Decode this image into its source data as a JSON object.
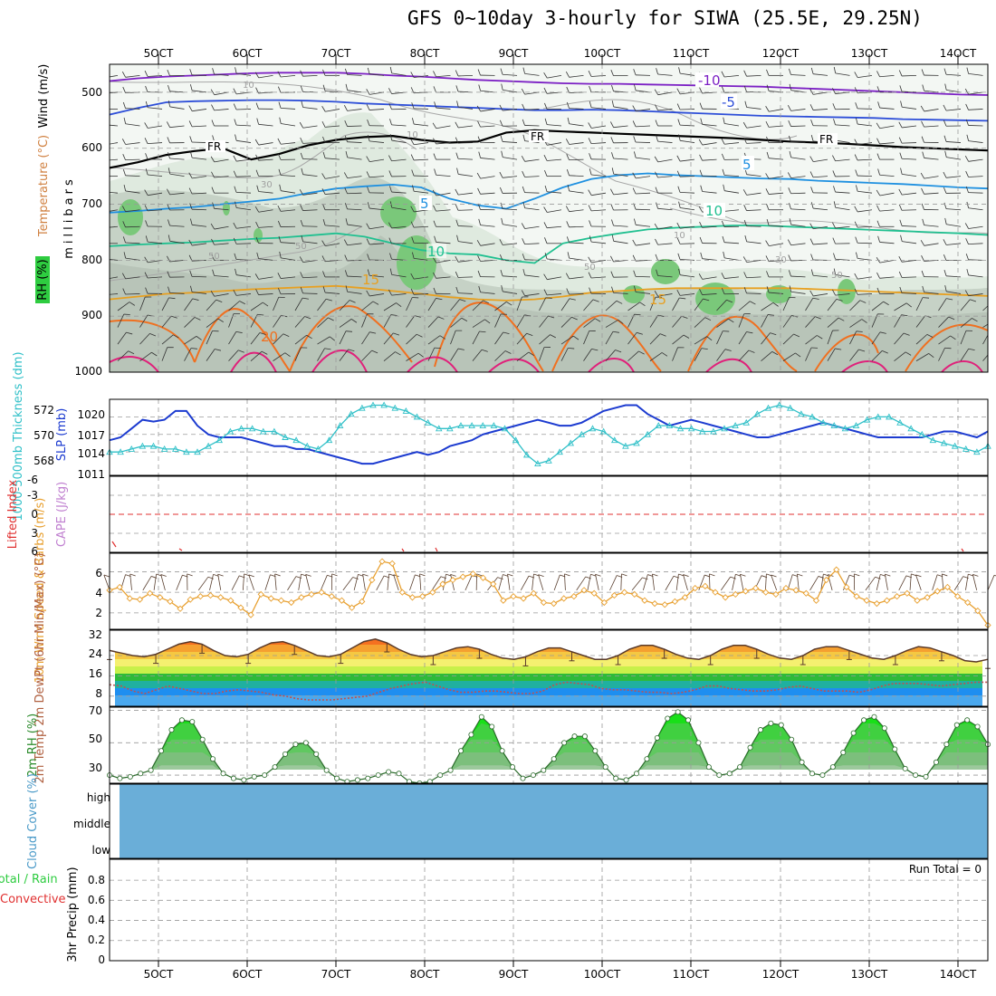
{
  "title": "GFS 0~10day 3-hourly for SIWA (25.5E, 29.25N)",
  "colors": {
    "temp_neg10": "#7b1fc4",
    "temp_neg5": "#2d4ed8",
    "temp_fr": "#000000",
    "temp_5": "#1e90e0",
    "temp_10": "#20c090",
    "temp_15": "#e8a020",
    "temp_20": "#f07020",
    "temp_25": "#e0207a",
    "slp": "#1c3bd0",
    "thickness": "#30c0c8",
    "wind_speed": "#e8a030",
    "barb": "#5a4030",
    "rh_line": "#2a8a2a",
    "rh_fill": "#3ec43e",
    "cloud": "#6aaed8",
    "zero_line": "#e03030"
  },
  "chart_data": [
    {
      "id": "upper_air",
      "type": "heatmap",
      "ylabel": "millibars",
      "side_labels": [
        "Wind (m/s)",
        "Temperature (°C)",
        "RH (%)"
      ],
      "y_ticks": [
        500,
        600,
        700,
        800,
        900,
        1000
      ],
      "ylim": [
        1000,
        450
      ],
      "x_ticks": [
        "5OCT",
        "6OCT",
        "7OCT",
        "8OCT",
        "9OCT",
        "10OCT",
        "11OCT",
        "12OCT",
        "13OCT",
        "14OCT"
      ],
      "contour_labels": [
        "-10",
        "-5",
        "FR",
        "FR",
        "FR",
        "5",
        "5",
        "10",
        "10",
        "15",
        "15",
        "20",
        "10",
        "30",
        "50",
        "50",
        "10",
        "50",
        "30",
        "10",
        "50"
      ],
      "isotherms_mb": [
        {
          "name": "-10",
          "color_key": "temp_neg10",
          "values": [
            480,
            475,
            472,
            470,
            468,
            466,
            465,
            465,
            465,
            467,
            470,
            472,
            475,
            478,
            480,
            482,
            484,
            485,
            485,
            486,
            487,
            488,
            489,
            490,
            492,
            494,
            496,
            498,
            500,
            502,
            504,
            505
          ]
        },
        {
          "name": "-5",
          "color_key": "temp_neg5",
          "values": [
            540,
            528,
            518,
            516,
            515,
            514,
            514,
            515,
            517,
            520,
            522,
            524,
            526,
            528,
            530,
            532,
            532,
            531,
            532,
            534,
            536,
            538,
            540,
            542,
            543,
            544,
            545,
            546,
            548,
            549,
            550,
            551
          ]
        },
        {
          "name": "FR",
          "color_key": "temp_fr",
          "values": [
            635,
            625,
            612,
            605,
            600,
            620,
            610,
            595,
            585,
            580,
            578,
            585,
            590,
            588,
            572,
            568,
            570,
            572,
            574,
            576,
            578,
            580,
            582,
            585,
            588,
            590,
            592,
            595,
            598,
            600,
            602,
            604
          ]
        },
        {
          "name": "5",
          "color_key": "temp_5",
          "values": [
            715,
            712,
            708,
            705,
            700,
            695,
            690,
            680,
            672,
            668,
            665,
            670,
            690,
            702,
            708,
            690,
            670,
            655,
            648,
            645,
            648,
            650,
            652,
            654,
            655,
            658,
            660,
            662,
            664,
            667,
            670,
            672
          ]
        },
        {
          "name": "10",
          "color_key": "temp_10",
          "values": [
            775,
            772,
            770,
            768,
            765,
            762,
            760,
            756,
            752,
            758,
            770,
            782,
            788,
            790,
            800,
            805,
            770,
            760,
            752,
            745,
            742,
            740,
            738,
            738,
            740,
            742,
            744,
            746,
            748,
            750,
            752,
            755
          ]
        },
        {
          "name": "15",
          "color_key": "temp_15",
          "values": [
            870,
            865,
            860,
            858,
            855,
            852,
            850,
            848,
            846,
            850,
            855,
            860,
            866,
            870,
            872,
            870,
            865,
            858,
            855,
            852,
            850,
            850,
            850,
            850,
            850,
            852,
            854,
            856,
            858,
            860,
            862,
            864
          ]
        }
      ]
    },
    {
      "id": "slp_thickness",
      "type": "line",
      "ylabel_left": "1000-500mb Thickness (dm)",
      "ylabel_right": "SLP (mb)",
      "thickness_ticks": [
        568,
        570,
        572
      ],
      "slp_ticks": [
        1011,
        1014,
        1017,
        1020
      ],
      "series": [
        {
          "name": "SLP (mb)",
          "color_key": "slp",
          "values": [
            1016,
            1016.5,
            1018,
            1019.5,
            1019.2,
            1019.5,
            1021,
            1021,
            1018.5,
            1017,
            1016.5,
            1016.5,
            1016.5,
            1016,
            1015.5,
            1015,
            1015,
            1014.5,
            1014.5,
            1014,
            1013.5,
            1013,
            1012.5,
            1012,
            1012,
            1012.5,
            1013,
            1013.5,
            1014,
            1013.5,
            1014,
            1015,
            1015.5,
            1016,
            1017,
            1017.5,
            1018,
            1018.5,
            1019,
            1019.5,
            1019,
            1018.5,
            1018.5,
            1019,
            1020,
            1021,
            1021.5,
            1022,
            1022,
            1020.5,
            1019.5,
            1018.5,
            1019,
            1019.5,
            1019,
            1018.5,
            1018,
            1017.5,
            1017,
            1016.5,
            1016.5,
            1017,
            1017.5,
            1018,
            1018.5,
            1019,
            1018.5,
            1018,
            1017.5,
            1017,
            1016.5,
            1016.5,
            1016.5,
            1016.5,
            1016.5,
            1017,
            1017.5,
            1017.5,
            1017,
            1016.5,
            1017.5
          ]
        },
        {
          "name": "Thickness (dm)",
          "color_key": "thickness",
          "values": [
            1014,
            1014,
            1014.5,
            1015,
            1015,
            1014.5,
            1014.5,
            1014,
            1014,
            1015,
            1016,
            1017.5,
            1018,
            1018,
            1017.5,
            1017.5,
            1016.5,
            1016,
            1015,
            1014.5,
            1016,
            1018.5,
            1020.5,
            1021.5,
            1022,
            1022,
            1021.5,
            1021,
            1020,
            1019,
            1018,
            1018,
            1018.5,
            1018.5,
            1018.5,
            1018.5,
            1018,
            1016,
            1013.5,
            1012,
            1012.5,
            1014,
            1015.5,
            1017,
            1018,
            1017.5,
            1016,
            1015,
            1015.5,
            1017,
            1018.5,
            1018.5,
            1018,
            1018,
            1017.5,
            1017.5,
            1018,
            1018.5,
            1019,
            1020.5,
            1021.5,
            1022,
            1021.5,
            1020.5,
            1020,
            1019,
            1018.5,
            1018,
            1018.5,
            1019.5,
            1020,
            1020,
            1019,
            1018,
            1017,
            1016,
            1015.5,
            1015,
            1014.5,
            1014,
            1015
          ]
        }
      ]
    },
    {
      "id": "cape_li",
      "type": "line",
      "ylabel_left": "Lifted Index",
      "ylabel_right": "CAPE (J/kg)",
      "y_ticks": [
        -6,
        -3,
        0,
        3,
        6
      ],
      "zero_line": 0
    },
    {
      "id": "wind10m",
      "type": "line",
      "ylabel": "10m Wind Speed & Barbs (m/s)",
      "y_ticks": [
        2,
        4,
        6
      ],
      "series": [
        {
          "name": "10m wind speed (m/s)",
          "color_key": "wind_speed",
          "values": [
            4.2,
            4.5,
            3.4,
            3.3,
            3.9,
            3.5,
            3.1,
            2.4,
            3.3,
            3.6,
            3.7,
            3.5,
            3.2,
            2.5,
            1.8,
            3.8,
            3.4,
            3.2,
            3.0,
            3.5,
            3.8,
            4.0,
            3.6,
            3.2,
            2.5,
            3.1,
            5.2,
            7.0,
            6.8,
            4.0,
            3.5,
            3.6,
            4.0,
            4.8,
            5.2,
            5.5,
            5.8,
            5.4,
            4.8,
            3.2,
            3.6,
            3.4,
            3.9,
            3.0,
            2.9,
            3.4,
            3.6,
            4.2,
            3.9,
            3.0,
            3.7,
            4.0,
            3.8,
            3.2,
            2.9,
            2.8,
            3.1,
            3.5,
            4.4,
            4.6,
            4.0,
            3.5,
            3.8,
            4.1,
            4.4,
            4.0,
            3.8,
            4.4,
            4.2,
            3.9,
            3.2,
            5.2,
            6.2,
            4.5,
            3.6,
            3.2,
            2.9,
            3.2,
            3.6,
            3.9,
            3.2,
            3.5,
            4.1,
            4.5,
            3.6,
            3.0,
            2.2,
            0.8
          ]
        }
      ]
    },
    {
      "id": "temp2m",
      "type": "area",
      "ylabel": "2m Temp 2m DewPt (6hr Min/Max) (°C)",
      "y_ticks": [
        8,
        16,
        24,
        32
      ],
      "series": [
        {
          "name": "2m Temp (°C)",
          "color_key": "temp_20",
          "values": [
            26,
            25,
            24,
            23.5,
            24.5,
            26.5,
            28.5,
            29.5,
            28.5,
            26,
            24,
            23.5,
            24.5,
            27,
            29,
            29.5,
            28,
            26,
            24,
            23.5,
            24.5,
            27,
            29.5,
            30.5,
            29,
            26.5,
            24.5,
            23.5,
            24,
            25.5,
            27,
            27.5,
            26.5,
            24.5,
            23,
            22.5,
            23.5,
            25.5,
            27,
            27,
            25.5,
            24,
            22.5,
            22.5,
            24,
            26.5,
            28,
            28,
            26.5,
            24.5,
            23,
            22.5,
            24,
            26.5,
            28,
            28,
            26.5,
            24.5,
            23,
            22.5,
            24,
            26.5,
            27.5,
            27.5,
            26,
            24.5,
            23,
            22.5,
            24,
            26,
            27.5,
            27,
            25.5,
            24,
            22,
            21.5,
            22.5
          ]
        },
        {
          "name": "2m DewPt (°C)",
          "color_key": "temp_neg10",
          "values": [
            12.5,
            12,
            10,
            9,
            10.5,
            12,
            11,
            10,
            9,
            9,
            10,
            10.5,
            10,
            9.5,
            8.5,
            8,
            7,
            6.5,
            6.5,
            6.5,
            7,
            7.5,
            8,
            9.5,
            11,
            12,
            13,
            13.5,
            12,
            10.5,
            9.5,
            9.5,
            10,
            10,
            9.5,
            9,
            9,
            10,
            12.5,
            13.5,
            13,
            12.5,
            11,
            10.5,
            10.5,
            10,
            9.5,
            9.5,
            9,
            9.5,
            10.5,
            12,
            12,
            11,
            10.5,
            10,
            10,
            10.5,
            11.5,
            12,
            11,
            10,
            10,
            10,
            9.5,
            10.5,
            12,
            13,
            13,
            13,
            12.5,
            12,
            12.5,
            13,
            13.5,
            13.5
          ]
        }
      ]
    },
    {
      "id": "rh2m",
      "type": "area",
      "ylabel": "2m RH (%)",
      "y_ticks": [
        30,
        50,
        70
      ],
      "series": [
        {
          "name": "2m RH (%)",
          "color_key": "rh_line",
          "values": [
            30,
            28,
            29,
            31,
            33,
            45,
            58,
            64,
            63,
            52,
            40,
            31,
            28,
            27,
            29,
            30,
            35,
            43,
            49,
            50,
            43,
            33,
            28,
            26,
            27,
            28,
            30,
            32,
            31,
            26,
            25,
            26,
            30,
            33,
            45,
            55,
            66,
            60,
            45,
            35,
            28,
            30,
            33,
            40,
            50,
            54,
            54,
            45,
            35,
            28,
            27,
            31,
            40,
            53,
            65,
            69,
            64,
            50,
            35,
            30,
            31,
            35,
            47,
            58,
            62,
            61,
            52,
            38,
            31,
            30,
            35,
            44,
            56,
            64,
            66,
            59,
            46,
            34,
            30,
            29,
            38,
            49,
            61,
            64,
            60,
            49
          ]
        }
      ]
    },
    {
      "id": "cloud",
      "type": "bar",
      "ylabel": "Cloud Cover (%)",
      "levels": [
        "high",
        "middle",
        "low"
      ]
    },
    {
      "id": "precip",
      "type": "bar",
      "ylabel_left": "Total / Rain",
      "ylabel_left2": "Convective",
      "ylabel": "3hr Precip (mm)",
      "y_ticks": [
        "0",
        "0.2",
        "0.4",
        "0.6",
        "0.8"
      ],
      "annotation": "Run Total = 0"
    }
  ]
}
